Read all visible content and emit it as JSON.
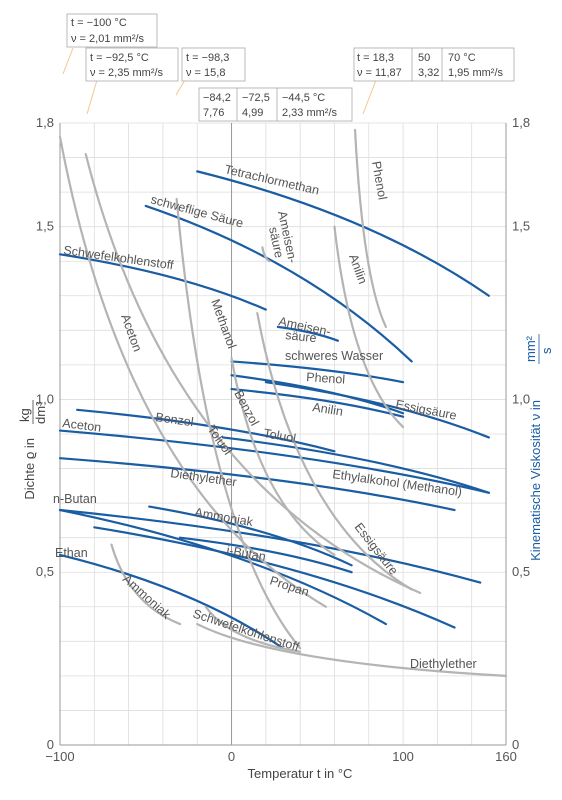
{
  "chart_data": {
    "type": "line",
    "xlabel": "Temperatur t in °C",
    "ylabel_left_prefix": "Dichte ϱ in",
    "ylabel_left_unit_num": "kg",
    "ylabel_left_unit_den": "dm³",
    "ylabel_right_prefix": "Kinematische Viskosität ν in",
    "ylabel_right_unit_num": "mm²",
    "ylabel_right_unit_den": "s",
    "xlim": [
      -100,
      160
    ],
    "ylim": [
      0,
      1.8
    ],
    "x_ticks": [
      -100,
      0,
      100,
      160
    ],
    "x_tick_labels": [
      "−100",
      "0",
      "100",
      "160"
    ],
    "y_ticks": [
      0,
      0.5,
      1.0,
      1.5,
      1.8
    ],
    "y_tick_labels": [
      "0",
      "0,5",
      "1,0",
      "1,5",
      "1,8"
    ],
    "grid": true,
    "colors": {
      "density": "#1a5da3",
      "viscosity": "#b4b4b4",
      "grid": "#dddddd",
      "axis": "#999999",
      "callout": "#f0c98c"
    },
    "density_series": [
      {
        "name": "Tetrachlormethan",
        "x": [
          -20,
          150
        ],
        "y": [
          1.66,
          1.3
        ]
      },
      {
        "name": "schweflige Säure",
        "x": [
          -50,
          105
        ],
        "y": [
          1.56,
          1.11
        ]
      },
      {
        "name": "Schwefelkohlenstoff",
        "x": [
          -100,
          20
        ],
        "y": [
          1.42,
          1.26
        ]
      },
      {
        "name": "Ameisensäure",
        "x": [
          27,
          62
        ],
        "y": [
          1.21,
          1.17
        ]
      },
      {
        "name": "schweres Wasser",
        "x": [
          0,
          100
        ],
        "y": [
          1.11,
          1.05
        ]
      },
      {
        "name": "Phenol",
        "x": [
          0,
          100
        ],
        "y": [
          1.07,
          0.96
        ]
      },
      {
        "name": "Anilin",
        "x": [
          0,
          100
        ],
        "y": [
          1.03,
          0.95
        ]
      },
      {
        "name": "Essigsäure",
        "x": [
          20,
          150
        ],
        "y": [
          1.05,
          0.89
        ]
      },
      {
        "name": "Benzol",
        "x": [
          -90,
          60
        ],
        "y": [
          0.97,
          0.85
        ]
      },
      {
        "name": "Toluol",
        "x": [
          -5,
          150
        ],
        "y": [
          0.89,
          0.73
        ]
      },
      {
        "name": "Aceton",
        "x": [
          -100,
          150
        ],
        "y": [
          0.91,
          0.73
        ]
      },
      {
        "name": "Ethylalkohol (Methanol)",
        "x": [
          -100,
          130
        ],
        "y": [
          0.83,
          0.68
        ]
      },
      {
        "name": "Diethylether",
        "x": [
          -100,
          145
        ],
        "y": [
          0.68,
          0.47
        ]
      },
      {
        "name": "Ammoniak",
        "x": [
          -48,
          70
        ],
        "y": [
          0.69,
          0.52
        ]
      },
      {
        "name": "i-Butan",
        "x": [
          -30,
          70
        ],
        "y": [
          0.6,
          0.5
        ]
      },
      {
        "name": "n-Butan",
        "x": [
          -100,
          90
        ],
        "y": [
          0.68,
          0.35
        ]
      },
      {
        "name": "Propan",
        "x": [
          -80,
          130
        ],
        "y": [
          0.63,
          0.34
        ]
      },
      {
        "name": "Ethan",
        "x": [
          -100,
          30
        ],
        "y": [
          0.55,
          0.28
        ]
      }
    ],
    "viscosity_series": [
      {
        "name": "Phenol",
        "x": [
          72,
          90
        ],
        "y": [
          1.78,
          1.21
        ]
      },
      {
        "name": "Anilin",
        "x": [
          60,
          100
        ],
        "y": [
          1.5,
          0.92
        ]
      },
      {
        "name": "Ameisensäure",
        "x": [
          18,
          22
        ],
        "y": [
          1.44,
          1.4
        ]
      },
      {
        "name": "Methanol",
        "x": [
          -32,
          40
        ],
        "y": [
          1.58,
          0.28
        ]
      },
      {
        "name": "Aceton",
        "x": [
          -100,
          55
        ],
        "y": [
          1.76,
          0.4
        ]
      },
      {
        "name": "Benzol",
        "x": [
          0,
          60
        ],
        "y": [
          1.12,
          0.55
        ]
      },
      {
        "name": "Toluol",
        "x": [
          -85,
          110
        ],
        "y": [
          1.71,
          0.44
        ]
      },
      {
        "name": "Essigsäure",
        "x": [
          15,
          105
        ],
        "y": [
          1.25,
          0.45
        ]
      },
      {
        "name": "Ammoniak",
        "x": [
          -70,
          -30
        ],
        "y": [
          0.58,
          0.35
        ]
      },
      {
        "name": "Schwefelkohlenstoff",
        "x": [
          -15,
          40
        ],
        "y": [
          0.4,
          0.27
        ]
      },
      {
        "name": "Diethylether",
        "x": [
          -20,
          160
        ],
        "y": [
          0.35,
          0.2
        ]
      }
    ],
    "curve_labels": {
      "tetrachlormethan": "Tetrachlormethan",
      "schweflige": "schweflige Säure",
      "schwefelkohlenstoff_d": "Schwefelkohlenstoff",
      "ameisen_d_1": "Ameisen-",
      "ameisen_d_2": "säure",
      "schweres_wasser": "schweres Wasser",
      "phenol_d": "Phenol",
      "anilin_d": "Anilin",
      "essig_d": "Essigsäure",
      "benzol_d": "Benzol",
      "toluol_d": "Toluol",
      "aceton_d": "Aceton",
      "ethylalkohol": "Ethylalkohol (Methanol)",
      "diethylether_d": "Diethylether",
      "ammoniak_d": "Ammoniak",
      "ibutan": "i-Butan",
      "nbutan": "n-Butan",
      "propan": "Propan",
      "ethan": "Ethan",
      "phenol_v": "Phenol",
      "anilin_v": "Anilin",
      "ameisen_v_1": "Ameisen-",
      "ameisen_v_2": "säure",
      "methanol_v": "Methanol",
      "aceton_v": "Aceton",
      "benzol_v": "Benzol",
      "toluol_v": "Toluol",
      "essig_v": "Essigsäure",
      "ammoniak_v": "Ammoniak",
      "schwefelkohlenstoff_v": "Schwefelkohlenstoff",
      "diethylether_v": "Diethylether"
    },
    "callouts": [
      {
        "l1": "t = −100 °C",
        "l2": "ν = 2,01 mm²/s"
      },
      {
        "l1": "t = −92,5 °C",
        "l2": "ν = 2,35 mm²/s"
      },
      {
        "l1": "t = −98,3",
        "l2": "ν = 15,8"
      },
      {
        "t": [
          "−84,2",
          "−72,5",
          "−44,5 °C"
        ],
        "v": [
          "7,76",
          "4,99",
          "2,33  mm²/s"
        ]
      },
      {
        "t": [
          "t = 18,3",
          "50",
          "70 °C"
        ],
        "v": [
          "ν = 11,87",
          "3,32",
          "1,95 mm²/s"
        ]
      }
    ]
  }
}
